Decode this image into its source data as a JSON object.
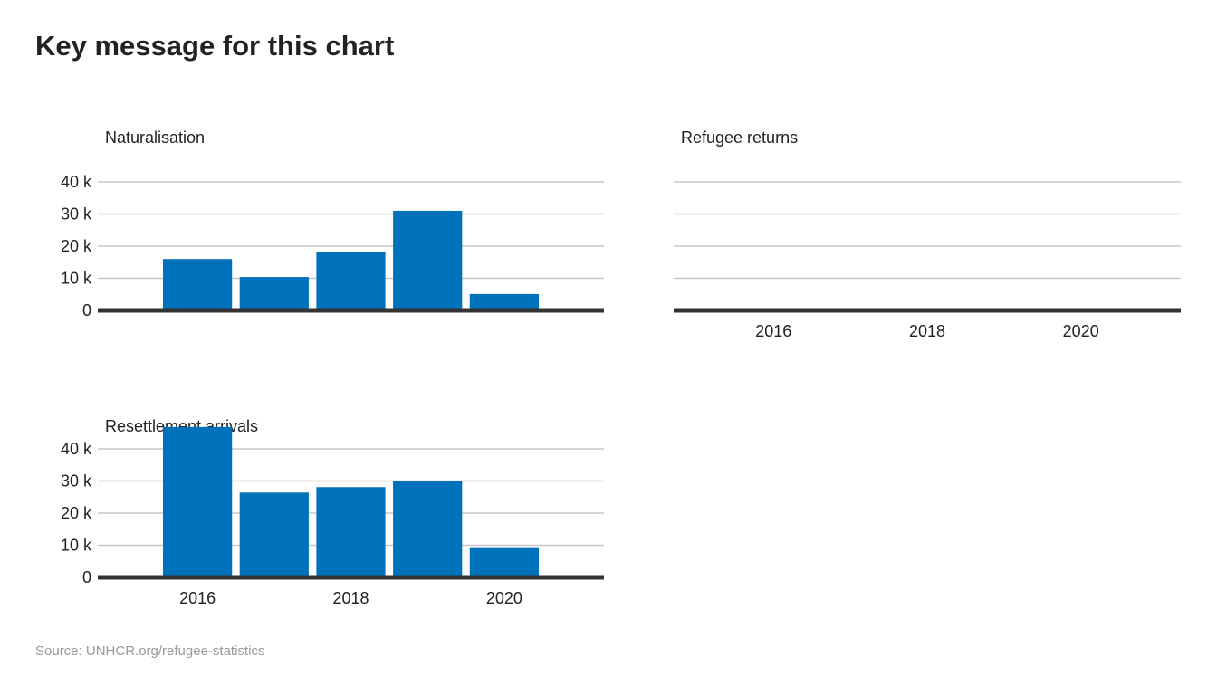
{
  "title": "Key message for this chart",
  "source": "Source: UNHCR.org/refugee-statistics",
  "chart_data": [
    {
      "type": "bar",
      "title": "Naturalisation",
      "color": "#0072bc",
      "x": [
        2016,
        2017,
        2018,
        2019,
        2020
      ],
      "values": [
        16000,
        10400,
        18300,
        31000,
        5100
      ],
      "xlim": [
        2014.7,
        2021.3
      ],
      "ylim": [
        0,
        40000
      ],
      "yticks": [
        0,
        {
          "value": 10000,
          "label": "10 k"
        },
        {
          "value": 20000,
          "label": "20 k"
        },
        {
          "value": 30000,
          "label": "30 k"
        },
        {
          "value": 40000,
          "label": "40 k"
        }
      ],
      "grid": true
    },
    {
      "type": "bar",
      "title": "Refugee returns",
      "color": "#0072bc",
      "x": [
        2016,
        2017,
        2018,
        2019,
        2020
      ],
      "values": [
        null,
        null,
        null,
        null,
        null
      ],
      "xlim": [
        2014.7,
        2021.3
      ],
      "ylim": [
        0,
        40000
      ],
      "yticks": [
        0,
        10000,
        20000,
        30000,
        40000
      ],
      "xticks": [
        2016,
        2018,
        2020
      ],
      "grid": true
    },
    {
      "type": "bar",
      "title": "Resettlement arrivals",
      "color": "#0072bc",
      "x": [
        2016,
        2017,
        2018,
        2019,
        2020
      ],
      "values": [
        46800,
        26400,
        28100,
        30100,
        9100
      ],
      "xlim": [
        2014.7,
        2021.3
      ],
      "ylim": [
        0,
        48000
      ],
      "yticks": [
        0,
        {
          "value": 10000,
          "label": "10 k"
        },
        {
          "value": 20000,
          "label": "20 k"
        },
        {
          "value": 30000,
          "label": "30 k"
        },
        {
          "value": 40000,
          "label": "40 k"
        }
      ],
      "xticks": [
        2016,
        2018,
        2020
      ],
      "grid": true
    }
  ]
}
